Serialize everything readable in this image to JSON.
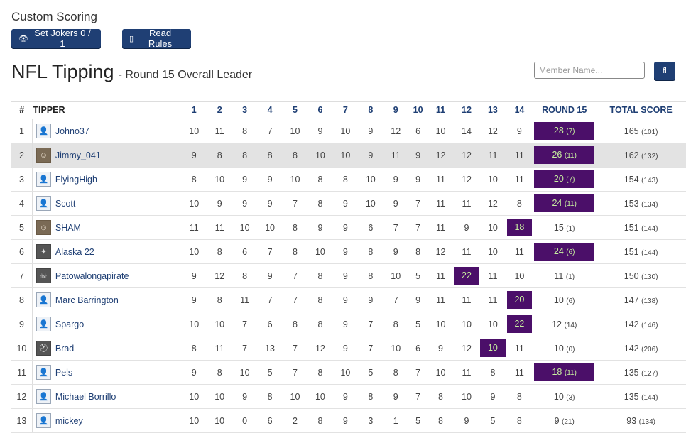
{
  "header": {
    "heading": "Custom Scoring",
    "jokers_button": "Set Jokers 0 / 1",
    "jokers_icon": "👁",
    "rules_button": "Read Rules",
    "rules_icon": "▯",
    "title": "NFL Tipping",
    "subtitle": "- Round 15 Overall Leader",
    "search_placeholder": "Member Name...",
    "search_button_icon": "fl"
  },
  "colors": {
    "primary": "#1f3f74",
    "highlight": "#4b0f69",
    "highlight_text": "#c8f0a0"
  },
  "table": {
    "columns": [
      "#",
      "TIPPER",
      "1",
      "2",
      "3",
      "4",
      "5",
      "6",
      "7",
      "8",
      "9",
      "10",
      "11",
      "12",
      "13",
      "14",
      "ROUND 15",
      "TOTAL SCORE"
    ],
    "rows": [
      {
        "rank": "1",
        "name": "Johno37",
        "avatar": "user-icon",
        "scores": [
          "10",
          "11",
          "8",
          "7",
          "10",
          "9",
          "10",
          "9",
          "12",
          "6",
          "10",
          "14",
          "12",
          "9"
        ],
        "hl_col": null,
        "round": "28",
        "round_sub": "(7)",
        "round_hl": true,
        "total": "165",
        "total_sub": "(101)"
      },
      {
        "rank": "2",
        "name": "Jimmy_041",
        "avatar": "photo-avatar",
        "scores": [
          "9",
          "8",
          "8",
          "8",
          "8",
          "10",
          "10",
          "9",
          "11",
          "9",
          "12",
          "12",
          "11",
          "11"
        ],
        "hl_col": null,
        "round": "26",
        "round_sub": "(11)",
        "round_hl": true,
        "total": "162",
        "total_sub": "(132)"
      },
      {
        "rank": "3",
        "name": "FlyingHigh",
        "avatar": "user-icon",
        "scores": [
          "8",
          "10",
          "9",
          "9",
          "10",
          "8",
          "8",
          "10",
          "9",
          "9",
          "11",
          "12",
          "10",
          "11"
        ],
        "hl_col": null,
        "round": "20",
        "round_sub": "(7)",
        "round_hl": true,
        "total": "154",
        "total_sub": "(143)"
      },
      {
        "rank": "4",
        "name": "Scott",
        "avatar": "user-icon",
        "scores": [
          "10",
          "9",
          "9",
          "9",
          "7",
          "8",
          "9",
          "10",
          "9",
          "7",
          "11",
          "11",
          "12",
          "8"
        ],
        "hl_col": null,
        "round": "24",
        "round_sub": "(11)",
        "round_hl": true,
        "total": "153",
        "total_sub": "(134)"
      },
      {
        "rank": "5",
        "name": "SHAM",
        "avatar": "photo-avatar",
        "scores": [
          "11",
          "11",
          "10",
          "10",
          "8",
          "9",
          "9",
          "6",
          "7",
          "7",
          "11",
          "9",
          "10",
          "18"
        ],
        "hl_col": 13,
        "round": "15",
        "round_sub": "(1)",
        "round_hl": false,
        "total": "151",
        "total_sub": "(144)"
      },
      {
        "rank": "6",
        "name": "Alaska 22",
        "avatar": "eagle-avatar",
        "scores": [
          "10",
          "8",
          "6",
          "7",
          "8",
          "10",
          "9",
          "8",
          "9",
          "8",
          "12",
          "11",
          "10",
          "11"
        ],
        "hl_col": null,
        "round": "24",
        "round_sub": "(6)",
        "round_hl": true,
        "total": "151",
        "total_sub": "(144)"
      },
      {
        "rank": "7",
        "name": "Patowalongapirate",
        "avatar": "logo-avatar",
        "scores": [
          "9",
          "12",
          "8",
          "9",
          "7",
          "8",
          "9",
          "8",
          "10",
          "5",
          "11",
          "22",
          "11",
          "10"
        ],
        "hl_col": 11,
        "round": "11",
        "round_sub": "(1)",
        "round_hl": false,
        "total": "150",
        "total_sub": "(130)"
      },
      {
        "rank": "8",
        "name": "Marc Barrington",
        "avatar": "user-icon",
        "scores": [
          "9",
          "8",
          "11",
          "7",
          "7",
          "8",
          "9",
          "9",
          "7",
          "9",
          "11",
          "11",
          "11",
          "20"
        ],
        "hl_col": 13,
        "round": "10",
        "round_sub": "(6)",
        "round_hl": false,
        "total": "147",
        "total_sub": "(138)"
      },
      {
        "rank": "9",
        "name": "Spargo",
        "avatar": "user-icon",
        "scores": [
          "10",
          "10",
          "7",
          "6",
          "8",
          "8",
          "9",
          "7",
          "8",
          "5",
          "10",
          "10",
          "10",
          "22"
        ],
        "hl_col": 13,
        "round": "12",
        "round_sub": "(14)",
        "round_hl": false,
        "total": "142",
        "total_sub": "(146)"
      },
      {
        "rank": "10",
        "name": "Brad",
        "avatar": "helmet-avatar",
        "scores": [
          "8",
          "11",
          "7",
          "13",
          "7",
          "12",
          "9",
          "7",
          "10",
          "6",
          "9",
          "12",
          "10",
          "11"
        ],
        "hl_col": 12,
        "round": "10",
        "round_sub": "(0)",
        "round_hl": false,
        "total": "142",
        "total_sub": "(206)"
      },
      {
        "rank": "11",
        "name": "Pels",
        "avatar": "user-icon",
        "scores": [
          "9",
          "8",
          "10",
          "5",
          "7",
          "8",
          "10",
          "5",
          "8",
          "7",
          "10",
          "11",
          "8",
          "11"
        ],
        "hl_col": null,
        "round": "18",
        "round_sub": "(11)",
        "round_hl": true,
        "total": "135",
        "total_sub": "(127)"
      },
      {
        "rank": "12",
        "name": "Michael Borrillo",
        "avatar": "user-icon",
        "scores": [
          "10",
          "10",
          "9",
          "8",
          "10",
          "10",
          "9",
          "8",
          "9",
          "7",
          "8",
          "10",
          "9",
          "8"
        ],
        "hl_col": null,
        "round": "10",
        "round_sub": "(3)",
        "round_hl": false,
        "total": "135",
        "total_sub": "(144)"
      },
      {
        "rank": "13",
        "name": "mickey",
        "avatar": "user-icon",
        "scores": [
          "10",
          "10",
          "0",
          "6",
          "2",
          "8",
          "9",
          "3",
          "1",
          "5",
          "8",
          "9",
          "5",
          "8"
        ],
        "hl_col": null,
        "round": "9",
        "round_sub": "(21)",
        "round_hl": false,
        "total": "93",
        "total_sub": "(134)"
      }
    ]
  }
}
